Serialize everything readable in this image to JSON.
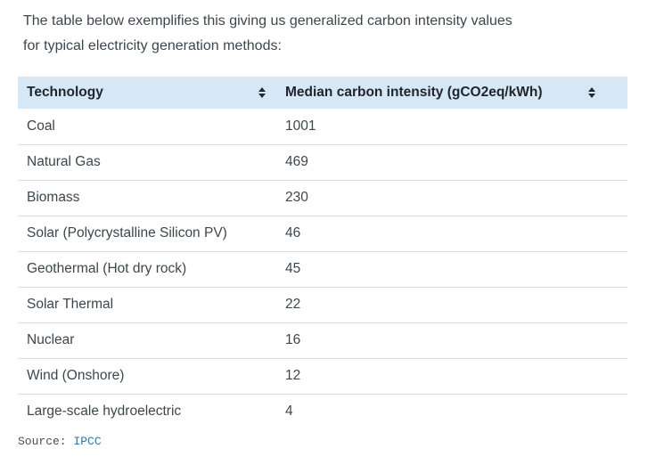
{
  "intro": {
    "line1": "The table below exemplifies this giving us generalized carbon intensity values",
    "line2": "for typical electricity generation methods:"
  },
  "table": {
    "columns": [
      {
        "label": "Technology",
        "sortable": true
      },
      {
        "label": "Median carbon intensity (gCO2eq/kWh)",
        "sortable": true
      }
    ],
    "rows": [
      {
        "technology": "Coal",
        "value": "1001"
      },
      {
        "technology": "Natural Gas",
        "value": "469"
      },
      {
        "technology": "Biomass",
        "value": "230"
      },
      {
        "technology": "Solar (Polycrystalline Silicon PV)",
        "value": "46"
      },
      {
        "technology": "Geothermal (Hot dry rock)",
        "value": "45"
      },
      {
        "technology": "Solar Thermal",
        "value": "22"
      },
      {
        "technology": "Nuclear",
        "value": "16"
      },
      {
        "technology": "Wind (Onshore)",
        "value": "12"
      },
      {
        "technology": "Large-scale hydroelectric",
        "value": "4"
      }
    ]
  },
  "source": {
    "label": "Source:",
    "link_text": "IPCC"
  },
  "colors": {
    "header_bg": "#d6e8f5",
    "header_text": "#20262c",
    "body_text": "#3d464e",
    "row_border": "#d9dde1",
    "link": "#2a7ab2",
    "sort_icon": "#222c36"
  }
}
